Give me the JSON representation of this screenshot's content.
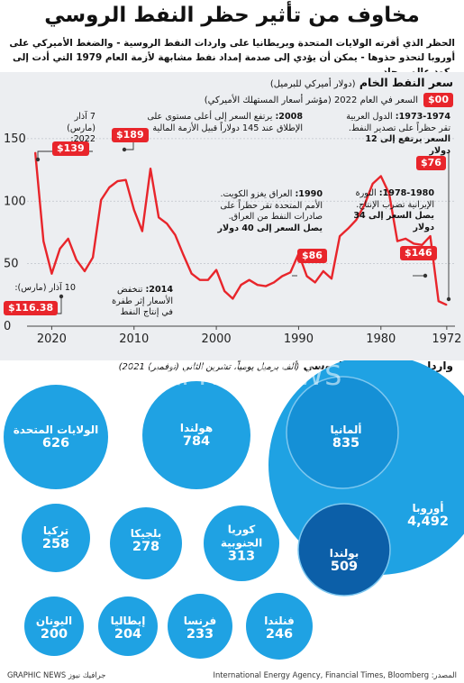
{
  "header": {
    "title": "مخاوف من تأثير حظر النفط الروسي",
    "subtitle": "الحظر الذي أقرته الولايات المتحدة وبريطانيا على واردات النفط الروسية - والضغط الأميركي على أوروبا لتحذو حذوها - يمكن أن يؤدي إلى صدمة إمداد نفط مشابهة لأزمة العام 1979 التي أدت إلى ركود عالمي حاد"
  },
  "chart_data": [
    {
      "type": "line",
      "title": "سعر النفط الخام",
      "title_note": "(دولار أميركي للبرميل)",
      "legend": {
        "badge": "$00",
        "label": "السعر في العام 2022 (مؤشر أسعار المستهلك الأميركي)"
      },
      "x_axis": {
        "reversed": true,
        "ticks": [
          1972,
          1980,
          1990,
          2000,
          2010,
          2020
        ],
        "range": [
          1971,
          2023
        ]
      },
      "y_axis": {
        "ticks": [
          0,
          50,
          100,
          150
        ],
        "range": [
          0,
          160
        ]
      },
      "line_color": "#e8252b",
      "x": [
        1972,
        1973,
        1974,
        1975,
        1976,
        1977,
        1978,
        1979,
        1980,
        1981,
        1982,
        1983,
        1984,
        1985,
        1986,
        1987,
        1988,
        1989,
        1990,
        1991,
        1992,
        1993,
        1994,
        1995,
        1996,
        1997,
        1998,
        1999,
        2000,
        2001,
        2002,
        2003,
        2004,
        2005,
        2006,
        2007,
        2008,
        2009,
        2010,
        2011,
        2012,
        2013,
        2014,
        2015,
        2016,
        2017,
        2018,
        2019,
        2020,
        2021,
        2022
      ],
      "values": [
        17,
        20,
        72,
        65,
        66,
        70,
        68,
        106,
        120,
        114,
        97,
        85,
        78,
        72,
        38,
        44,
        35,
        40,
        58,
        43,
        40,
        35,
        32,
        33,
        37,
        33,
        22,
        28,
        45,
        37,
        37,
        42,
        57,
        73,
        82,
        87,
        126,
        76,
        93,
        117,
        116,
        111,
        101,
        55,
        44,
        53,
        70,
        62,
        42,
        68,
        139
      ],
      "annotations": [
        {
          "badge": "$139",
          "title": "7 آذار (مارس) 2022:"
        },
        {
          "badge": "$116.38",
          "title": "10 آذار (مارس):"
        },
        {
          "badge": "$189",
          "title": "2008:",
          "text": "يرتفع السعر إلى أعلى مستوى على الإطلاق عند 145 دولاراً قبيل الأزمة المالية"
        },
        {
          "title": "2014:",
          "text": "تنخفض الأسعار إثر طفرة في إنتاج النفط"
        },
        {
          "badge": "$86",
          "title": "1990:",
          "text": "العراق يغزو الكويت. الأمم المتحدة تقر حظراً على صادرات النفط من العراق.",
          "bold": "يصل السعر إلى 40 دولار"
        },
        {
          "badge": "$146",
          "title": "1978-1980:",
          "text": "الثورة الإيرانية تضرب الإنتاج.",
          "bold": "يصل السعر إلى 34 دولار"
        },
        {
          "badge": "$76",
          "title": "1973-1974:",
          "text": "الدول العربية تقر حظراً على تصدير النفط.",
          "bold": "السعر يرتفع إلى 12 دولار"
        }
      ]
    },
    {
      "type": "bubble",
      "title": "واردات النفط الخام الروسي",
      "title_note": "(ألف برميل يومياً، تشرين الثاني (نوفمبر) 2021)",
      "countries": [
        {
          "name": "الولايات المتحدة",
          "value": 626
        },
        {
          "name": "هولندا",
          "value": 784
        },
        {
          "name": "ألمانيا",
          "value": 835
        },
        {
          "name": "تركيا",
          "value": 258
        },
        {
          "name": "بلجيكا",
          "value": 278
        },
        {
          "name": "كوريا الجنوبية",
          "value": 313
        },
        {
          "name": "اليونان",
          "value": 200
        },
        {
          "name": "إيطاليا",
          "value": 204
        },
        {
          "name": "فرنسا",
          "value": 233
        },
        {
          "name": "فنلندا",
          "value": 246
        }
      ],
      "europe": {
        "name": "أوروبا",
        "value": "4,492"
      },
      "netherlands_inset": {
        "name": "بولندا",
        "value": 509
      },
      "colors": {
        "light": "#1fa2e3",
        "mid": "#1590d6",
        "dark": "#0c5fa8"
      }
    }
  ],
  "footer": {
    "source": "المصدر: International Energy Agency, Financial Times, Bloomberg",
    "credit": "GRAPHIC NEWS جرافيك نيوز"
  },
  "watermark": "GRAPHIC NEWS"
}
